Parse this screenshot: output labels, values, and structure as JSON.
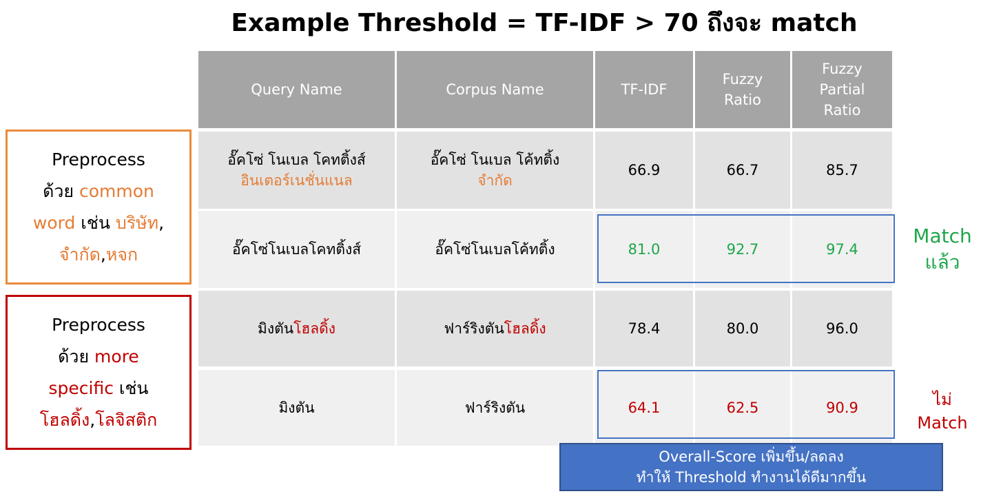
{
  "title": "Example Threshold = TF-IDF > 70 ถึงจะ match",
  "table": {
    "headers": {
      "query": "Query Name",
      "corpus": "Corpus Name",
      "tfidf": "TF-IDF",
      "fuzzy_ratio": [
        "Fuzzy",
        "Ratio"
      ],
      "fuzzy_partial": [
        "Fuzzy",
        "Partial",
        "Ratio"
      ]
    },
    "rows": [
      {
        "query_line1": "อั๊คโซ่ โนเบล โคทติ้งส์",
        "query_line2": "อินเตอร์เนชั่นแนล",
        "corpus_line1": "อั๊คโซ่ โนเบล โค้ทติ้ง",
        "corpus_line2": "จำกัด",
        "tfidf": "66.9",
        "fuzzy_ratio": "66.7",
        "fuzzy_partial": "85.7"
      },
      {
        "query": "อั๊คโซ่โนเบลโคทติ้งส์",
        "corpus": "อั๊คโซ่โนเบลโค้ทติ้ง",
        "tfidf": "81.0",
        "fuzzy_ratio": "92.7",
        "fuzzy_partial": "97.4"
      },
      {
        "query_a": "มิงตัน",
        "query_b": "โฮลดิ้ง",
        "corpus_a": "ฟาร์ริงตัน",
        "corpus_b": "โฮลดิ้ง",
        "tfidf": "78.4",
        "fuzzy_ratio": "80.0",
        "fuzzy_partial": "96.0"
      },
      {
        "query": "มิงตัน",
        "corpus": "ฟาร์ริงตัน",
        "tfidf": "64.1",
        "fuzzy_ratio": "62.5",
        "fuzzy_partial": "90.9"
      }
    ]
  },
  "side_notes": {
    "common": {
      "line1": "Preprocess",
      "line2_a": "ด้วย ",
      "line2_b": "common",
      "line3_a": "word",
      "line3_b": " เช่น ",
      "line3_c": "บริษัท",
      "line3_d": ",",
      "line4_a": "จำกัด",
      "line4_b": ",",
      "line4_c": "หจก"
    },
    "specific": {
      "line1": "Preprocess",
      "line2_a": "ด้วย ",
      "line2_b": "more",
      "line3_a": "specific",
      "line3_b": " เช่น",
      "line4_a": "โฮลดิ้ง",
      "line4_b": ",",
      "line4_c": "โลจิสติก"
    }
  },
  "notes": {
    "match": [
      "Match",
      "แล้ว"
    ],
    "no_match": [
      "ไม่",
      "Match"
    ]
  },
  "banner": {
    "line1": "Overall-Score เพิ่มขึ้น/ลดลง",
    "line2": "ทำให้ Threshold ทำงานได้ดีมากขึ้น"
  },
  "colors": {
    "header_bg": "#a5a5a5",
    "row_dark": "#e2e2e2",
    "row_light": "#f0f0f0",
    "orange": "#e47c35",
    "red": "#c00000",
    "green": "#1fa64b",
    "highlight_blue": "#4472c4"
  }
}
